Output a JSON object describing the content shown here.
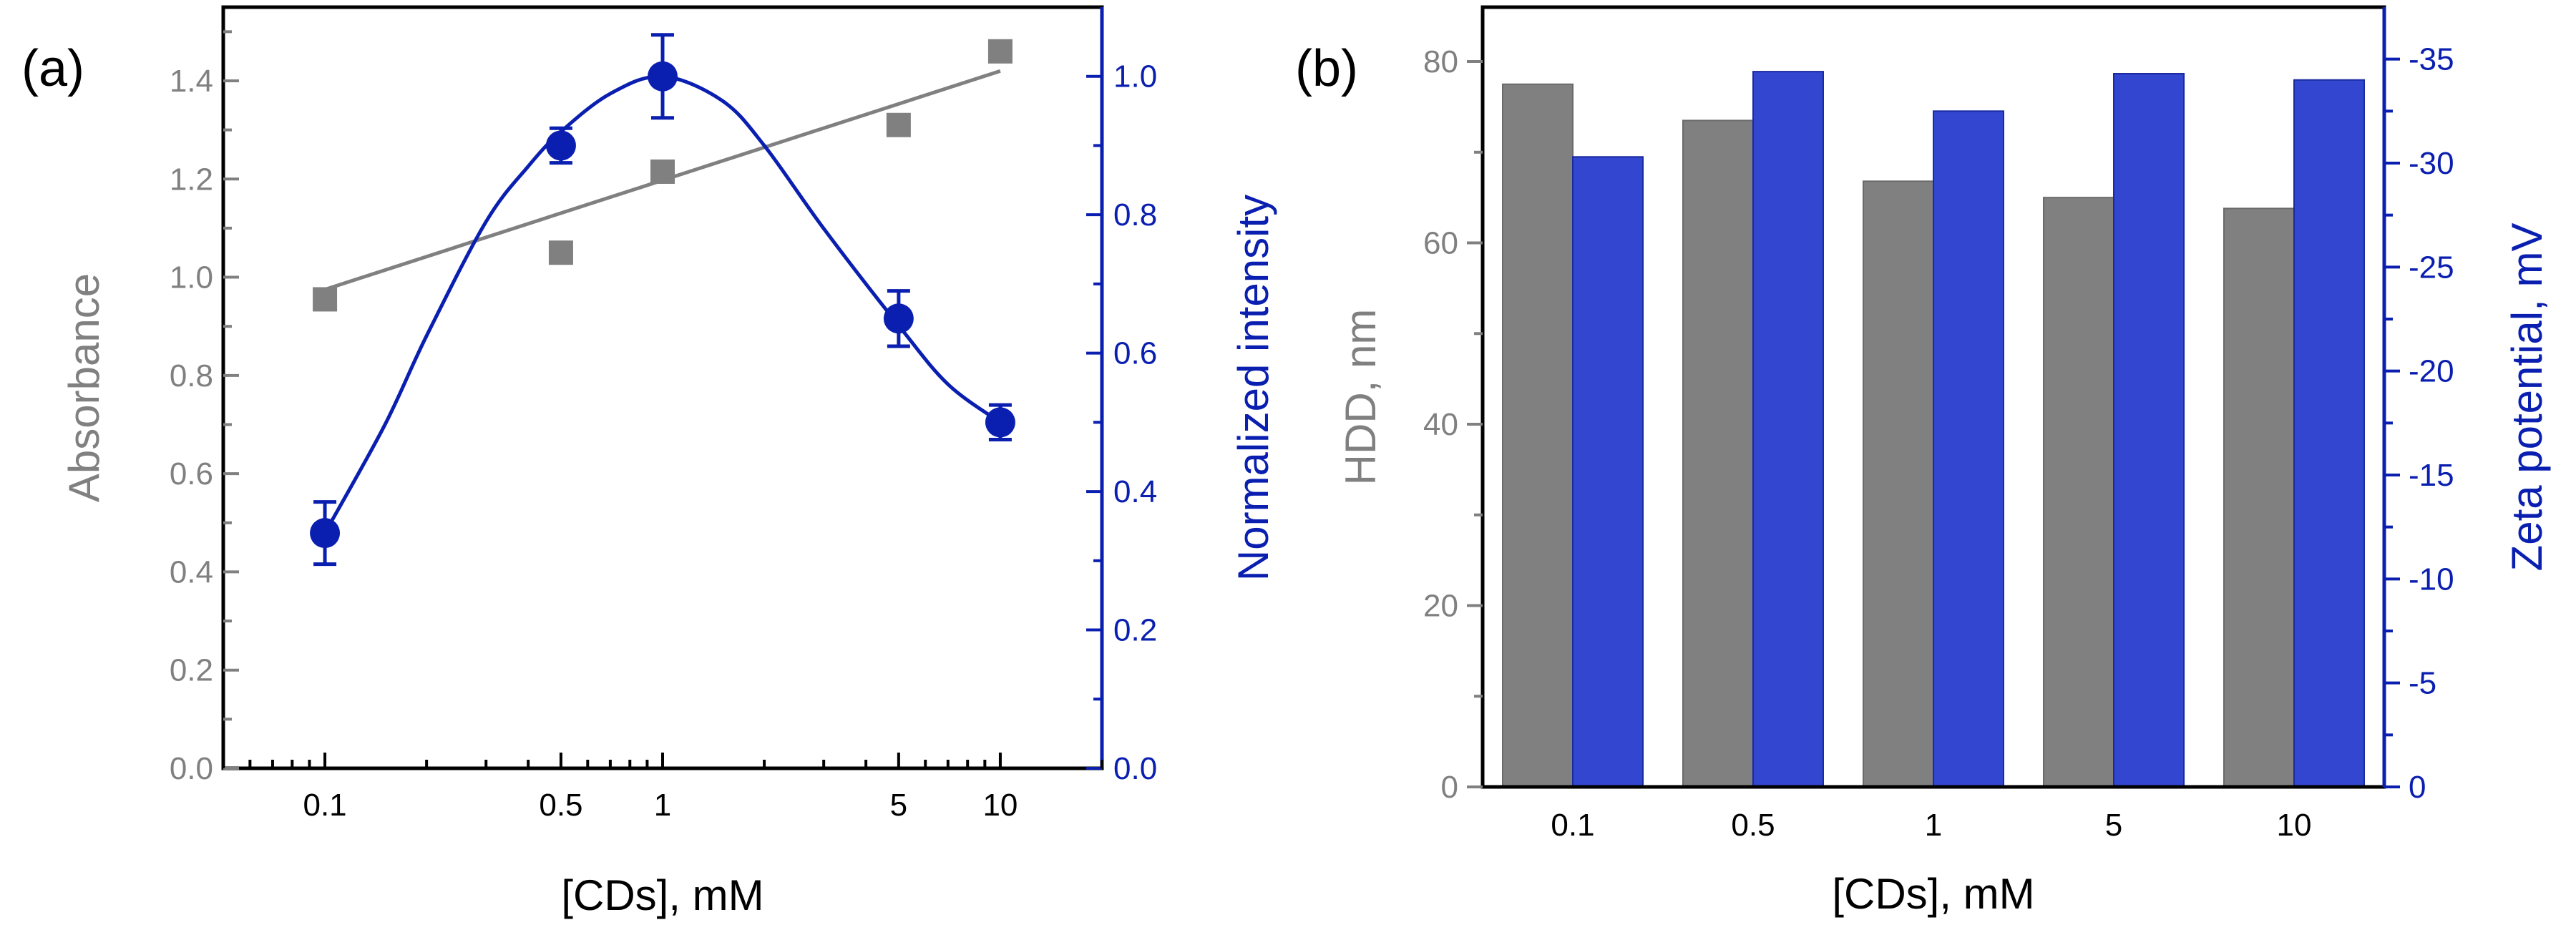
{
  "colors": {
    "gray": "#808080",
    "blue": "#0a1fb0",
    "blue_bar": "#3346d0",
    "black": "#000000"
  },
  "chart_data": [
    {
      "panel_label": "(a)",
      "type": "scatter",
      "xscale": "log",
      "xlabel": "[CDs], mM",
      "xlim": [
        0.05,
        20
      ],
      "x_ticks": [
        0.1,
        0.5,
        1,
        5,
        10
      ],
      "x_tick_labels": [
        "0.1",
        "0.5",
        "1",
        "5",
        "10"
      ],
      "y_left": {
        "label": "Absorbance",
        "lim": [
          0,
          1.55
        ],
        "ticks": [
          0.0,
          0.2,
          0.4,
          0.6,
          0.8,
          1.0,
          1.2,
          1.4
        ],
        "tick_labels": [
          "0.0",
          "0.2",
          "0.4",
          "0.6",
          "0.8",
          "1.0",
          "1.2",
          "1.4"
        ]
      },
      "y_right": {
        "label": "Normalized intensity",
        "lim": [
          0,
          1.1
        ],
        "ticks": [
          0.0,
          0.2,
          0.4,
          0.6,
          0.8,
          1.0
        ],
        "tick_labels": [
          "0.0",
          "0.2",
          "0.4",
          "0.6",
          "0.8",
          "1.0"
        ]
      },
      "series": [
        {
          "name": "Absorbance",
          "axis": "left",
          "marker": "square",
          "color": "gray",
          "x": [
            0.1,
            0.5,
            1,
            5,
            10
          ],
          "y": [
            0.955,
            1.05,
            1.215,
            1.31,
            1.46
          ],
          "fit": {
            "type": "linear-in-log-x",
            "x": [
              0.1,
              10
            ],
            "y": [
              0.975,
              1.42
            ]
          }
        },
        {
          "name": "Normalized intensity",
          "axis": "right",
          "marker": "circle",
          "color": "blue",
          "x": [
            0.1,
            0.5,
            1,
            5,
            10
          ],
          "y": [
            0.34,
            0.9,
            1.0,
            0.65,
            0.5
          ],
          "yerr": [
            0.045,
            0.025,
            0.06,
            0.04,
            0.025
          ],
          "fit": {
            "type": "smooth",
            "x": [
              0.1,
              0.15,
              0.2,
              0.3,
              0.4,
              0.5,
              0.7,
              1,
              1.5,
              2,
              3,
              5,
              7,
              10
            ],
            "y": [
              0.34,
              0.495,
              0.625,
              0.79,
              0.87,
              0.92,
              0.975,
              1.0,
              0.965,
              0.9,
              0.78,
              0.64,
              0.555,
              0.5
            ]
          }
        }
      ]
    },
    {
      "panel_label": "(b)",
      "type": "bar",
      "xlabel": "[CDs], mM",
      "categories": [
        "0.1",
        "0.5",
        "1",
        "5",
        "10"
      ],
      "y_left": {
        "label": "HDD, nm",
        "lim": [
          0,
          86
        ],
        "ticks": [
          0,
          20,
          40,
          60,
          80
        ],
        "tick_labels": [
          "0",
          "20",
          "40",
          "60",
          "80"
        ]
      },
      "y_right": {
        "label": "Zeta potential, mV",
        "lim": [
          0,
          37.5
        ],
        "ticks": [
          0,
          5,
          10,
          15,
          20,
          25,
          30,
          35
        ],
        "tick_labels": [
          "0",
          "-5",
          "-10",
          "-15",
          "-20",
          "-25",
          "-30",
          "-35"
        ]
      },
      "series": [
        {
          "name": "HDD, nm",
          "axis": "left",
          "color": "gray",
          "values": [
            77.5,
            73.5,
            66.8,
            65.0,
            63.8
          ]
        },
        {
          "name": "Zeta potential, mV",
          "axis": "right",
          "color": "blue_bar",
          "values": [
            -30.3,
            -34.4,
            -32.5,
            -34.3,
            -34.0
          ]
        }
      ]
    }
  ]
}
